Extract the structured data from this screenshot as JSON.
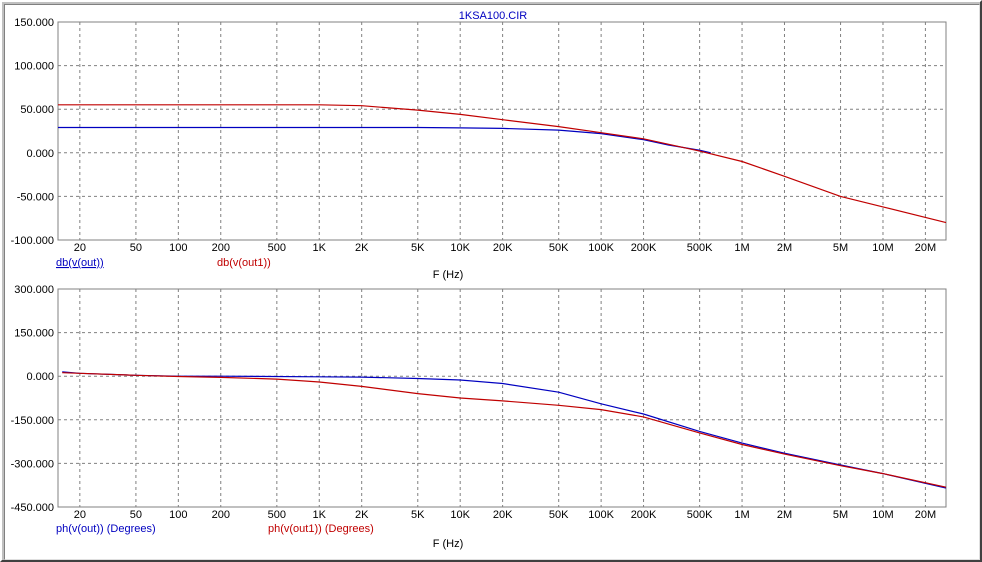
{
  "window": {
    "title": "1KSA100.CIR"
  },
  "colors": {
    "blue": "#0000c0",
    "red": "#c00000",
    "grid": "#808080",
    "axis": "#000000"
  },
  "chart_data": [
    {
      "type": "line",
      "title": "1KSA100.CIR",
      "xlabel": "F (Hz)",
      "xscale": "log",
      "xlim": [
        14,
        28000000
      ],
      "ylim": [
        -100,
        150
      ],
      "yticks": [
        "150.000",
        "100.000",
        "50.000",
        "0.000",
        "-50.000",
        "-100.000"
      ],
      "ytick_values": [
        150,
        100,
        50,
        0,
        -50,
        -100
      ],
      "xticks": [
        "20",
        "50",
        "100",
        "200",
        "500",
        "1K",
        "2K",
        "5K",
        "10K",
        "20K",
        "50K",
        "100K",
        "200K",
        "500K",
        "1M",
        "2M",
        "5M",
        "10M",
        "20M"
      ],
      "xtick_values": [
        20,
        50,
        100,
        200,
        500,
        1000,
        2000,
        5000,
        10000,
        20000,
        50000,
        100000,
        200000,
        500000,
        1000000,
        2000000,
        5000000,
        10000000,
        20000000
      ],
      "grid": true,
      "series": [
        {
          "name": "db(v(out))",
          "color": "#0000c0",
          "x": [
            14,
            100,
            1000,
            5000,
            10000,
            20000,
            50000,
            100000,
            200000,
            300000,
            500000,
            600000
          ],
          "y": [
            29,
            29,
            29,
            29,
            28.5,
            28,
            26,
            22,
            15,
            9,
            3,
            0
          ]
        },
        {
          "name": "db(v(out1))",
          "color": "#c00000",
          "x": [
            14,
            100,
            1000,
            2000,
            5000,
            10000,
            20000,
            50000,
            100000,
            200000,
            500000,
            1000000,
            2000000,
            5000000,
            10000000,
            28000000
          ],
          "y": [
            55,
            55,
            55,
            54,
            49,
            44,
            38,
            30,
            23,
            16,
            2,
            -10,
            -27,
            -50,
            -62,
            -80
          ]
        }
      ]
    },
    {
      "type": "line",
      "xlabel": "F (Hz)",
      "xscale": "log",
      "xlim": [
        14,
        28000000
      ],
      "ylim": [
        -450,
        300
      ],
      "yticks": [
        "300.000",
        "150.000",
        "0.000",
        "-150.000",
        "-300.000",
        "-450.000"
      ],
      "ytick_values": [
        300,
        150,
        0,
        -150,
        -300,
        -450
      ],
      "xticks": [
        "20",
        "50",
        "100",
        "200",
        "500",
        "1K",
        "2K",
        "5K",
        "10K",
        "20K",
        "50K",
        "100K",
        "200K",
        "500K",
        "1M",
        "2M",
        "5M",
        "10M",
        "20M"
      ],
      "xtick_values": [
        20,
        50,
        100,
        200,
        500,
        1000,
        2000,
        5000,
        10000,
        20000,
        50000,
        100000,
        200000,
        500000,
        1000000,
        2000000,
        5000000,
        10000000,
        20000000
      ],
      "grid": true,
      "series": [
        {
          "name": "ph(v(out)) (Degrees)",
          "color": "#0000c0",
          "x": [
            15,
            20,
            50,
            100,
            200,
            1000,
            2000,
            5000,
            10000,
            20000,
            50000,
            100000,
            200000,
            500000,
            1000000,
            2000000,
            5000000,
            10000000,
            28000000
          ],
          "y": [
            15,
            10,
            3,
            0,
            0,
            -2,
            -3,
            -8,
            -13,
            -25,
            -55,
            -95,
            -130,
            -190,
            -230,
            -265,
            -305,
            -335,
            -385
          ]
        },
        {
          "name": "ph(v(out1)) (Degrees)",
          "color": "#c00000",
          "x": [
            15,
            20,
            50,
            100,
            200,
            500,
            1000,
            2000,
            5000,
            10000,
            20000,
            50000,
            100000,
            200000,
            500000,
            1000000,
            2000000,
            5000000,
            10000000,
            28000000
          ],
          "y": [
            12,
            10,
            3,
            -1,
            -4,
            -10,
            -20,
            -35,
            -60,
            -75,
            -85,
            -100,
            -115,
            -140,
            -195,
            -235,
            -268,
            -308,
            -335,
            -382
          ]
        }
      ]
    }
  ]
}
